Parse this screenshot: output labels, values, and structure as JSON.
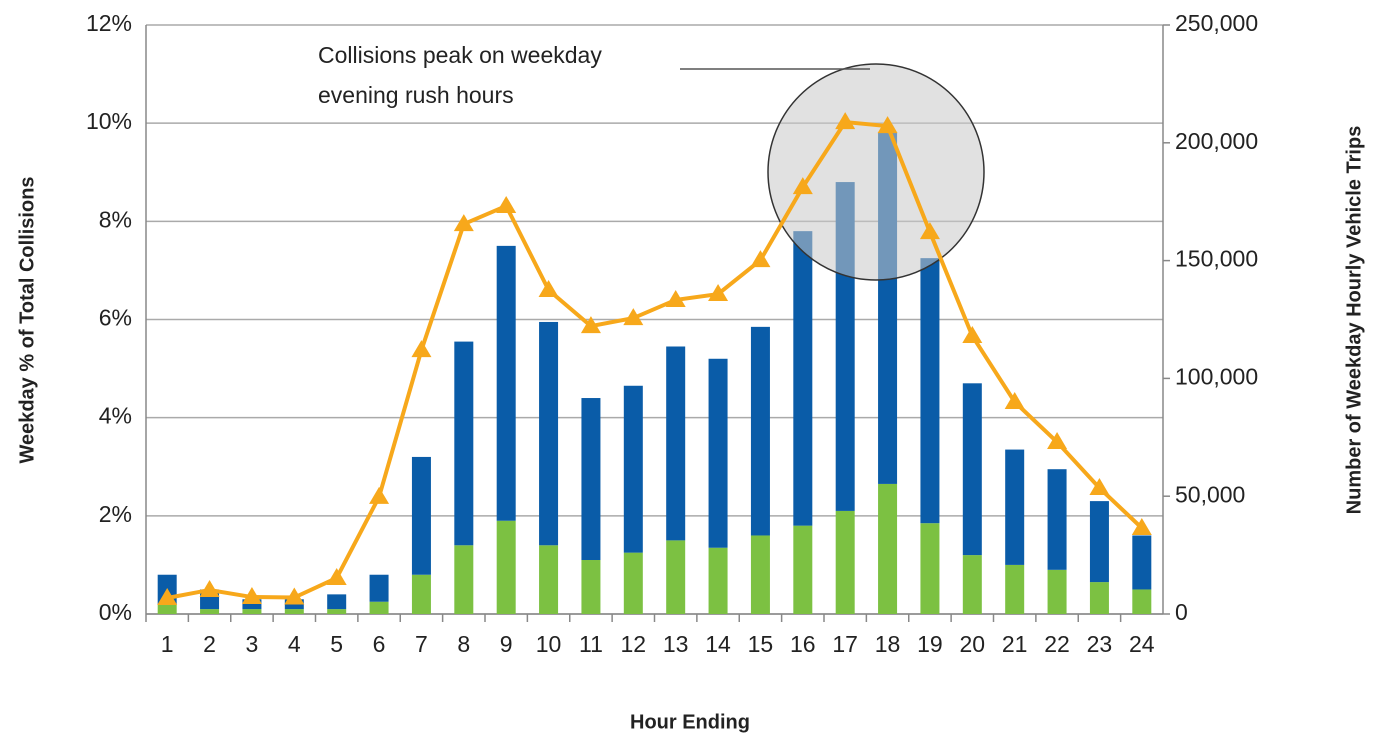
{
  "chart_data": {
    "type": "bar",
    "stacked": true,
    "categories": [
      "1",
      "2",
      "3",
      "4",
      "5",
      "6",
      "7",
      "8",
      "9",
      "10",
      "11",
      "12",
      "13",
      "14",
      "15",
      "16",
      "17",
      "18",
      "19",
      "20",
      "21",
      "22",
      "23",
      "24"
    ],
    "series": [
      {
        "type": "bar",
        "color": "#7cc142",
        "values": [
          0.2,
          0.1,
          0.1,
          0.1,
          0.1,
          0.25,
          0.8,
          1.4,
          1.9,
          1.4,
          1.1,
          1.25,
          1.5,
          1.35,
          1.6,
          1.8,
          2.1,
          2.65,
          1.85,
          1.2,
          1.0,
          0.9,
          0.65,
          0.5
        ]
      },
      {
        "type": "bar",
        "color": "#0a5ca8",
        "values": [
          0.6,
          0.4,
          0.2,
          0.2,
          0.3,
          0.55,
          2.4,
          4.15,
          5.6,
          4.55,
          3.3,
          3.4,
          3.95,
          3.85,
          4.25,
          6.0,
          6.7,
          7.15,
          5.4,
          3.5,
          2.35,
          2.05,
          1.65,
          1.1
        ]
      },
      {
        "type": "line",
        "axis": "y2",
        "color": "#f7a81b",
        "values": [
          6800,
          10200,
          7200,
          7000,
          15300,
          49700,
          112000,
          165500,
          173200,
          137500,
          122200,
          125600,
          133300,
          135800,
          150200,
          181200,
          208800,
          207100,
          162100,
          118000,
          90000,
          73000,
          53500,
          36500
        ]
      }
    ],
    "ylim": [
      0,
      12
    ],
    "yticks": [
      {
        "value": 0,
        "label": "0%"
      },
      {
        "value": 2,
        "label": "2%"
      },
      {
        "value": 4,
        "label": "4%"
      },
      {
        "value": 6,
        "label": "6%"
      },
      {
        "value": 8,
        "label": "8%"
      },
      {
        "value": 10,
        "label": "10%"
      },
      {
        "value": 12,
        "label": "12%"
      }
    ],
    "y2lim": [
      0,
      250000
    ],
    "y2ticks": [
      0,
      {
        "value": 50000,
        "label": "50,000"
      },
      {
        "value": 100000,
        "label": "100,000"
      },
      {
        "value": 150000,
        "label": "150,000"
      },
      {
        "value": 200000,
        "label": "200,000"
      },
      {
        "value": 250000,
        "label": "250,000"
      }
    ],
    "grid": true,
    "y_label": "Weekday % of Total Collisions",
    "y2_label": "Number of Weekday Hourly Vehicle Trips",
    "x_label": "Hour Ending",
    "annotation": [
      "Collisions peak on weekday",
      "evening rush hours"
    ]
  }
}
